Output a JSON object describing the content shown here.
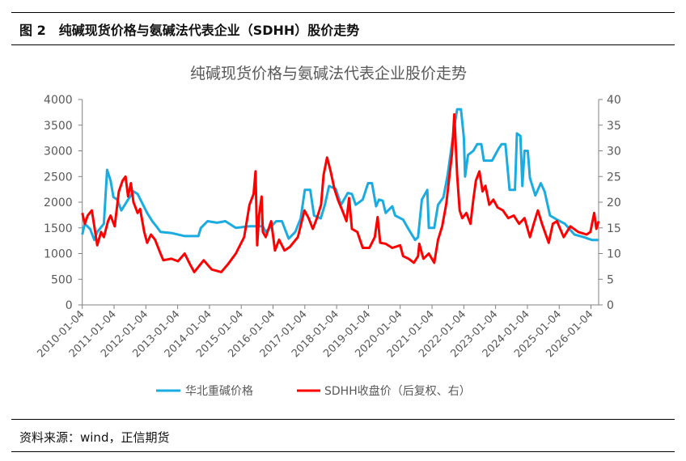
{
  "header": {
    "figure_no": "图 2",
    "title": "纯碱现货价格与氨碱法代表企业（SDHH）股价走势"
  },
  "source": "资料来源：wind，正信期货",
  "colors": {
    "blue": "#1AABE1",
    "red": "#FF0000",
    "axis": "#808080",
    "text": "#595959"
  },
  "chart_data": {
    "type": "line",
    "title": "纯碱现货价格与氨碱法代表企业股价走势",
    "xlabel": "",
    "ylabel": "",
    "y2label": "",
    "xlim": [
      2010.0,
      2026.24
    ],
    "ylim": [
      0,
      4000
    ],
    "y2lim": [
      0,
      40
    ],
    "yticks": [
      "0",
      "500",
      "1000",
      "1500",
      "2000",
      "2500",
      "3000",
      "3500",
      "4000"
    ],
    "y2ticks": [
      "0",
      "5",
      "10",
      "15",
      "20",
      "25",
      "30",
      "35",
      "40"
    ],
    "xtick_labels": [
      "2010-01-04",
      "2011-01-04",
      "2012-01-04",
      "2013-01-04",
      "2014-01-04",
      "2015-01-04",
      "2016-01-04",
      "2017-01-04",
      "2018-01-04",
      "2019-01-04",
      "2020-01-04",
      "2021-01-04",
      "2022-01-04",
      "2023-01-04",
      "2024-01-04",
      "2025-01-04",
      "2026-01-04"
    ],
    "grid": false,
    "legend_position": "bottom",
    "series": [
      {
        "name": "华北重碱价格",
        "axis": "left",
        "color": "#1AABE1",
        "x": [
          2010.0,
          2010.08,
          2010.25,
          2010.38,
          2010.47,
          2010.68,
          2010.78,
          2010.89,
          2010.98,
          2011.1,
          2011.23,
          2011.44,
          2011.61,
          2011.74,
          2011.87,
          2012.04,
          2012.2,
          2012.33,
          2012.46,
          2012.8,
          2013.22,
          2013.65,
          2013.73,
          2013.94,
          2014.24,
          2014.5,
          2014.83,
          2015.26,
          2015.68,
          2015.77,
          2016.1,
          2016.28,
          2016.49,
          2016.7,
          2016.87,
          2017.0,
          2017.17,
          2017.29,
          2017.5,
          2017.63,
          2017.76,
          2017.97,
          2018.14,
          2018.35,
          2018.48,
          2018.6,
          2018.82,
          2018.99,
          2019.11,
          2019.24,
          2019.33,
          2019.45,
          2019.54,
          2019.75,
          2019.84,
          2020.09,
          2020.26,
          2020.47,
          2020.56,
          2020.68,
          2020.85,
          2020.9,
          2021.07,
          2021.19,
          2021.36,
          2021.49,
          2021.7,
          2021.79,
          2021.91,
          2022.0,
          2022.04,
          2022.13,
          2022.3,
          2022.42,
          2022.55,
          2022.63,
          2022.89,
          2023.1,
          2023.19,
          2023.31,
          2023.44,
          2023.61,
          2023.67,
          2023.78,
          2023.84,
          2023.91,
          2024.01,
          2024.08,
          2024.25,
          2024.42,
          2024.54,
          2024.71,
          2024.93,
          2025.18,
          2025.48,
          2025.77,
          2026.03,
          2026.24
        ],
        "values": [
          1370,
          1580,
          1475,
          1265,
          1420,
          1580,
          2630,
          2420,
          2100,
          2050,
          1840,
          2050,
          2210,
          2160,
          2000,
          1790,
          1630,
          1530,
          1420,
          1400,
          1340,
          1340,
          1500,
          1630,
          1600,
          1630,
          1500,
          1530,
          1530,
          1420,
          1630,
          1630,
          1290,
          1420,
          1685,
          2240,
          2240,
          1740,
          1685,
          1950,
          2315,
          2260,
          1950,
          2180,
          2160,
          1950,
          2050,
          2370,
          2370,
          1920,
          2050,
          2030,
          1790,
          1920,
          1740,
          1660,
          1475,
          1265,
          1320,
          2050,
          2240,
          1500,
          1500,
          1950,
          2100,
          2525,
          3470,
          3810,
          3810,
          3260,
          2500,
          2920,
          3000,
          3130,
          3130,
          2810,
          2810,
          3050,
          3130,
          3130,
          2240,
          2240,
          3340,
          3290,
          2315,
          3000,
          3000,
          2470,
          2130,
          2370,
          2210,
          1740,
          1660,
          1580,
          1370,
          1320,
          1265,
          1265
        ]
      },
      {
        "name": "SDHH收盘价（后复权、右）",
        "axis": "right",
        "color": "#FF0000",
        "x": [
          2010.0,
          2010.08,
          2010.17,
          2010.3,
          2010.38,
          2010.47,
          2010.59,
          2010.68,
          2010.81,
          2010.89,
          2011.02,
          2011.15,
          2011.27,
          2011.36,
          2011.44,
          2011.53,
          2011.61,
          2011.74,
          2011.82,
          2011.95,
          2012.04,
          2012.16,
          2012.29,
          2012.46,
          2012.55,
          2012.8,
          2013.01,
          2013.22,
          2013.39,
          2013.52,
          2013.82,
          2014.07,
          2014.37,
          2014.58,
          2014.83,
          2015.09,
          2015.26,
          2015.39,
          2015.45,
          2015.5,
          2015.56,
          2015.64,
          2015.68,
          2015.77,
          2015.94,
          2016.06,
          2016.19,
          2016.36,
          2016.53,
          2016.78,
          2016.99,
          2017.12,
          2017.25,
          2017.38,
          2017.51,
          2017.59,
          2017.7,
          2017.8,
          2017.93,
          2018.05,
          2018.18,
          2018.31,
          2018.39,
          2018.48,
          2018.65,
          2018.82,
          2019.03,
          2019.2,
          2019.29,
          2019.37,
          2019.54,
          2019.75,
          2020.0,
          2020.09,
          2020.26,
          2020.43,
          2020.56,
          2020.6,
          2020.73,
          2020.9,
          2021.07,
          2021.19,
          2021.32,
          2021.45,
          2021.57,
          2021.63,
          2021.7,
          2021.79,
          2021.87,
          2021.95,
          2022.08,
          2022.21,
          2022.3,
          2022.38,
          2022.49,
          2022.59,
          2022.68,
          2022.8,
          2022.93,
          2023.06,
          2023.23,
          2023.4,
          2023.57,
          2023.74,
          2023.91,
          2024.08,
          2024.2,
          2024.33,
          2024.46,
          2024.67,
          2024.8,
          2024.93,
          2025.14,
          2025.35,
          2025.6,
          2025.86,
          2025.98,
          2026.1,
          2026.17,
          2026.24
        ],
        "values": [
          17.9,
          15.8,
          17.4,
          18.4,
          15.3,
          11.6,
          14.2,
          13.2,
          16.3,
          17.4,
          15.3,
          22.1,
          24.2,
          25.0,
          21.1,
          23.7,
          20.0,
          17.9,
          18.7,
          14.2,
          12.1,
          13.7,
          12.7,
          10.0,
          8.7,
          9.0,
          8.5,
          10.0,
          7.9,
          6.4,
          8.7,
          6.9,
          6.4,
          7.9,
          10.0,
          13.2,
          19.5,
          21.6,
          26.0,
          11.6,
          17.4,
          21.1,
          14.2,
          13.2,
          16.3,
          10.6,
          12.7,
          10.6,
          11.3,
          13.2,
          18.4,
          16.9,
          14.8,
          16.9,
          19.5,
          25.3,
          28.7,
          26.3,
          22.6,
          20.3,
          18.4,
          16.3,
          20.8,
          14.8,
          14.2,
          11.1,
          11.1,
          13.2,
          17.1,
          12.1,
          11.9,
          11.1,
          11.6,
          9.5,
          9.0,
          8.2,
          9.5,
          11.9,
          9.0,
          10.0,
          8.2,
          12.7,
          15.3,
          19.7,
          26.3,
          29.5,
          37.1,
          25.3,
          18.4,
          16.9,
          17.9,
          15.8,
          20.5,
          24.2,
          26.0,
          22.1,
          23.2,
          19.5,
          20.5,
          19.0,
          18.4,
          16.9,
          17.4,
          15.8,
          16.9,
          13.2,
          15.8,
          18.4,
          15.8,
          12.1,
          15.8,
          16.3,
          13.2,
          15.3,
          14.2,
          13.7,
          14.2,
          17.9,
          14.8,
          16.3
        ]
      }
    ]
  }
}
